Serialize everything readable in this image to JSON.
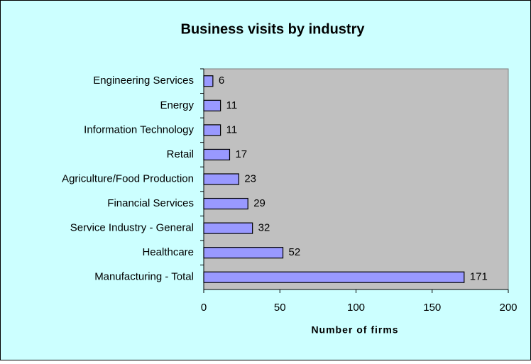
{
  "chart_data": {
    "type": "bar",
    "orientation": "horizontal",
    "title": "Business visits by industry",
    "xlabel": "Number of firms",
    "categories": [
      "Engineering Services",
      "Energy",
      "Information Technology",
      "Retail",
      "Agriculture/Food Production",
      "Financial Services",
      "Service Industry - General",
      "Healthcare",
      "Manufacturing - Total"
    ],
    "values": [
      6,
      11,
      11,
      17,
      23,
      29,
      32,
      52,
      171
    ],
    "color": "#9999ff",
    "xlim": [
      0,
      200
    ],
    "xticks": [
      0,
      50,
      100,
      150,
      200
    ]
  }
}
